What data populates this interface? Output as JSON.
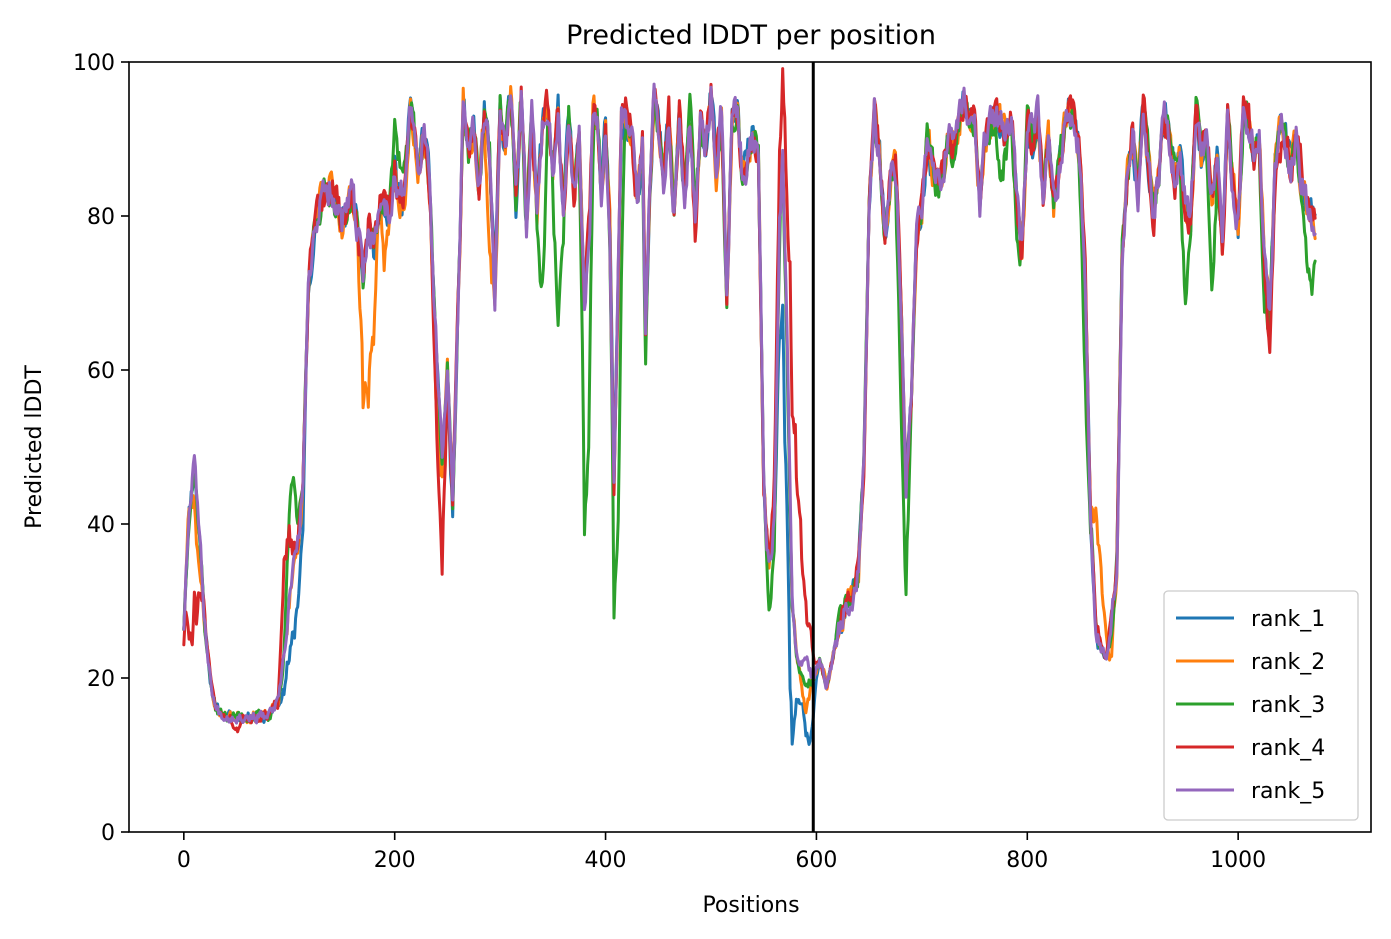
{
  "chart_data": {
    "type": "line",
    "title": "Predicted lDDT per position",
    "xlabel": "Positions",
    "ylabel": "Predicted lDDT",
    "xlim": [
      -52,
      1126
    ],
    "ylim": [
      0,
      100
    ],
    "xticks": [
      0,
      200,
      400,
      600,
      800,
      1000
    ],
    "yticks": [
      0,
      20,
      40,
      60,
      80,
      100
    ],
    "grid": false,
    "legend_position": "lower-right",
    "vline": {
      "x": 597,
      "color": "#000000"
    },
    "x_start": 0,
    "x_end": 1073,
    "base": [
      [
        0,
        27
      ],
      [
        4,
        40
      ],
      [
        10,
        48
      ],
      [
        15,
        38
      ],
      [
        20,
        27
      ],
      [
        25,
        20
      ],
      [
        30,
        16
      ],
      [
        40,
        15
      ],
      [
        60,
        15
      ],
      [
        80,
        15
      ],
      [
        90,
        17
      ],
      [
        97,
        25
      ],
      [
        102,
        33
      ],
      [
        108,
        37
      ],
      [
        113,
        45
      ],
      [
        118,
        70
      ],
      [
        123,
        78
      ],
      [
        130,
        82
      ],
      [
        140,
        84
      ],
      [
        150,
        79
      ],
      [
        160,
        83
      ],
      [
        170,
        72
      ],
      [
        175,
        79
      ],
      [
        180,
        76
      ],
      [
        188,
        83
      ],
      [
        195,
        80
      ],
      [
        200,
        86
      ],
      [
        205,
        82
      ],
      [
        210,
        84
      ],
      [
        215,
        95
      ],
      [
        222,
        86
      ],
      [
        228,
        91
      ],
      [
        233,
        84
      ],
      [
        238,
        67
      ],
      [
        245,
        48
      ],
      [
        250,
        60
      ],
      [
        255,
        43
      ],
      [
        262,
        78
      ],
      [
        265,
        95
      ],
      [
        270,
        88
      ],
      [
        275,
        91
      ],
      [
        280,
        83
      ],
      [
        285,
        94
      ],
      [
        290,
        88
      ],
      [
        295,
        70
      ],
      [
        300,
        95
      ],
      [
        305,
        89
      ],
      [
        310,
        96
      ],
      [
        315,
        82
      ],
      [
        320,
        95
      ],
      [
        325,
        79
      ],
      [
        330,
        94
      ],
      [
        335,
        81
      ],
      [
        340,
        92
      ],
      [
        345,
        94
      ],
      [
        350,
        86
      ],
      [
        355,
        94
      ],
      [
        360,
        80
      ],
      [
        365,
        93
      ],
      [
        370,
        83
      ],
      [
        375,
        90
      ],
      [
        380,
        69
      ],
      [
        385,
        80
      ],
      [
        388,
        94
      ],
      [
        392,
        93
      ],
      [
        396,
        83
      ],
      [
        400,
        92
      ],
      [
        404,
        79
      ],
      [
        408,
        45
      ],
      [
        412,
        72
      ],
      [
        415,
        93
      ],
      [
        420,
        92
      ],
      [
        425,
        90
      ],
      [
        430,
        82
      ],
      [
        435,
        89
      ],
      [
        438,
        65
      ],
      [
        442,
        84
      ],
      [
        446,
        96
      ],
      [
        450,
        92
      ],
      [
        455,
        85
      ],
      [
        460,
        93
      ],
      [
        465,
        80
      ],
      [
        470,
        94
      ],
      [
        475,
        83
      ],
      [
        480,
        91
      ],
      [
        485,
        78
      ],
      [
        490,
        93
      ],
      [
        495,
        89
      ],
      [
        500,
        96
      ],
      [
        505,
        86
      ],
      [
        510,
        94
      ],
      [
        515,
        69
      ],
      [
        520,
        93
      ],
      [
        525,
        94
      ],
      [
        530,
        85
      ],
      [
        535,
        88
      ],
      [
        540,
        90
      ],
      [
        545,
        87
      ],
      [
        550,
        45
      ],
      [
        555,
        34
      ],
      [
        560,
        40
      ],
      [
        565,
        78
      ],
      [
        568,
        88
      ],
      [
        572,
        64
      ],
      [
        577,
        28
      ],
      [
        582,
        22
      ],
      [
        590,
        19
      ],
      [
        597,
        20
      ],
      [
        603,
        22
      ],
      [
        610,
        19
      ],
      [
        615,
        22
      ],
      [
        620,
        26
      ],
      [
        625,
        28
      ],
      [
        630,
        30
      ],
      [
        635,
        31
      ],
      [
        640,
        34
      ],
      [
        645,
        48
      ],
      [
        650,
        80
      ],
      [
        655,
        93
      ],
      [
        660,
        88
      ],
      [
        665,
        77
      ],
      [
        670,
        85
      ],
      [
        675,
        86
      ],
      [
        680,
        70
      ],
      [
        685,
        45
      ],
      [
        690,
        56
      ],
      [
        695,
        77
      ],
      [
        700,
        80
      ],
      [
        705,
        90
      ],
      [
        710,
        86
      ],
      [
        715,
        84
      ],
      [
        720,
        85
      ],
      [
        725,
        91
      ],
      [
        730,
        88
      ],
      [
        735,
        92
      ],
      [
        740,
        95
      ],
      [
        745,
        92
      ],
      [
        750,
        92
      ],
      [
        755,
        82
      ],
      [
        760,
        90
      ],
      [
        765,
        92
      ],
      [
        770,
        93
      ],
      [
        775,
        92
      ],
      [
        780,
        90
      ],
      [
        785,
        93
      ],
      [
        790,
        82
      ],
      [
        795,
        75
      ],
      [
        800,
        92
      ],
      [
        805,
        90
      ],
      [
        810,
        93
      ],
      [
        815,
        83
      ],
      [
        820,
        90
      ],
      [
        825,
        81
      ],
      [
        830,
        86
      ],
      [
        835,
        91
      ],
      [
        840,
        94
      ],
      [
        845,
        93
      ],
      [
        850,
        87
      ],
      [
        855,
        72
      ],
      [
        860,
        40
      ],
      [
        865,
        27
      ],
      [
        870,
        24
      ],
      [
        875,
        23
      ],
      [
        880,
        27
      ],
      [
        885,
        35
      ],
      [
        890,
        76
      ],
      [
        895,
        85
      ],
      [
        900,
        91
      ],
      [
        905,
        82
      ],
      [
        910,
        95
      ],
      [
        915,
        87
      ],
      [
        920,
        80
      ],
      [
        925,
        86
      ],
      [
        930,
        93
      ],
      [
        935,
        90
      ],
      [
        940,
        85
      ],
      [
        945,
        87
      ],
      [
        950,
        81
      ],
      [
        955,
        80
      ],
      [
        960,
        94
      ],
      [
        965,
        88
      ],
      [
        970,
        90
      ],
      [
        975,
        83
      ],
      [
        980,
        87
      ],
      [
        985,
        76
      ],
      [
        990,
        93
      ],
      [
        995,
        84
      ],
      [
        1000,
        79
      ],
      [
        1005,
        94
      ],
      [
        1010,
        92
      ],
      [
        1015,
        88
      ],
      [
        1020,
        90
      ],
      [
        1025,
        75
      ],
      [
        1030,
        67
      ],
      [
        1035,
        86
      ],
      [
        1040,
        93
      ],
      [
        1045,
        90
      ],
      [
        1050,
        86
      ],
      [
        1055,
        90
      ],
      [
        1060,
        84
      ],
      [
        1065,
        82
      ],
      [
        1070,
        80
      ],
      [
        1073,
        79
      ]
    ],
    "series": [
      {
        "name": "rank_1",
        "color": "#1f77b4",
        "seed": 11,
        "offsets": [
          [
            95,
            -4
          ],
          [
            100,
            -6
          ],
          [
            105,
            -7
          ],
          [
            110,
            -5
          ],
          [
            112,
            -3
          ],
          [
            248,
            -3
          ],
          [
            255,
            -3
          ],
          [
            565,
            -12
          ],
          [
            570,
            -20
          ],
          [
            575,
            -20
          ],
          [
            580,
            -6
          ],
          [
            585,
            -3
          ],
          [
            590,
            -4
          ],
          [
            593,
            -4
          ],
          [
            596,
            -4
          ]
        ]
      },
      {
        "name": "rank_2",
        "color": "#ff7f0e",
        "seed": 23,
        "offsets": [
          [
            10,
            -3
          ],
          [
            13,
            -4
          ],
          [
            170,
            -13
          ],
          [
            175,
            -18
          ],
          [
            180,
            -9
          ],
          [
            190,
            -8
          ],
          [
            240,
            -6
          ],
          [
            243,
            -4
          ],
          [
            290,
            -12
          ],
          [
            300,
            -3
          ],
          [
            590,
            -4
          ],
          [
            865,
            12
          ],
          [
            870,
            8
          ],
          [
            875,
            2
          ],
          [
            880,
            -5
          ]
        ]
      },
      {
        "name": "rank_3",
        "color": "#2ca02c",
        "seed": 37,
        "offsets": [
          [
            100,
            10
          ],
          [
            105,
            8
          ],
          [
            200,
            5
          ],
          [
            205,
            4
          ],
          [
            340,
            -22
          ],
          [
            355,
            -27
          ],
          [
            380,
            -24
          ],
          [
            384,
            -20
          ],
          [
            408,
            -8
          ],
          [
            412,
            -28
          ],
          [
            415,
            -6
          ],
          [
            438,
            -4
          ],
          [
            480,
            5
          ],
          [
            555,
            -5
          ],
          [
            560,
            -2
          ],
          [
            680,
            -12
          ],
          [
            685,
            -13
          ],
          [
            775,
            -9
          ],
          [
            790,
            -5
          ],
          [
            855,
            -15
          ],
          [
            950,
            -13
          ],
          [
            975,
            -12
          ],
          [
            1025,
            -6
          ],
          [
            1065,
            -5
          ],
          [
            1070,
            -8
          ]
        ]
      },
      {
        "name": "rank_4",
        "color": "#d62728",
        "seed": 51,
        "offsets": [
          [
            5,
            -12
          ],
          [
            8,
            -10
          ],
          [
            12,
            -14
          ],
          [
            50,
            -2
          ],
          [
            95,
            12
          ],
          [
            100,
            8
          ],
          [
            240,
            -7
          ],
          [
            245,
            -13
          ],
          [
            420,
            2
          ],
          [
            560,
            5
          ],
          [
            565,
            8
          ],
          [
            570,
            10
          ],
          [
            575,
            25
          ],
          [
            580,
            22
          ],
          [
            585,
            15
          ],
          [
            590,
            8
          ],
          [
            595,
            5
          ],
          [
            1030,
            -6
          ],
          [
            1040,
            -5
          ],
          [
            1060,
            3
          ]
        ]
      },
      {
        "name": "rank_5",
        "color": "#9467bd",
        "seed": 67,
        "offsets": [
          [
            10,
            2
          ],
          [
            575,
            2
          ],
          [
            590,
            4
          ]
        ]
      }
    ]
  }
}
